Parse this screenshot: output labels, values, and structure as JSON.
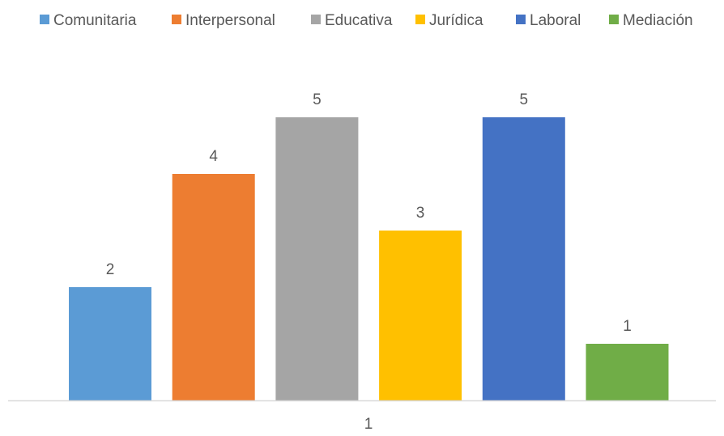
{
  "chart_data": {
    "type": "bar",
    "categories": [
      "1"
    ],
    "series": [
      {
        "name": "Comunitaria",
        "values": [
          2
        ],
        "color": "#5B9BD5"
      },
      {
        "name": "Interpersonal",
        "values": [
          4
        ],
        "color": "#ED7D31"
      },
      {
        "name": "Educativa",
        "values": [
          5
        ],
        "color": "#A5A5A5"
      },
      {
        "name": "Jurídica",
        "values": [
          3
        ],
        "color": "#FFC000"
      },
      {
        "name": "Laboral",
        "values": [
          5
        ],
        "color": "#4472C4"
      },
      {
        "name": "Mediación",
        "values": [
          1
        ],
        "color": "#70AD47"
      }
    ],
    "title": "",
    "xlabel": "",
    "ylabel": "",
    "ylim": [
      0,
      5
    ],
    "legend_position": "top",
    "grid": false,
    "axis_color": "#D9D9D9"
  }
}
